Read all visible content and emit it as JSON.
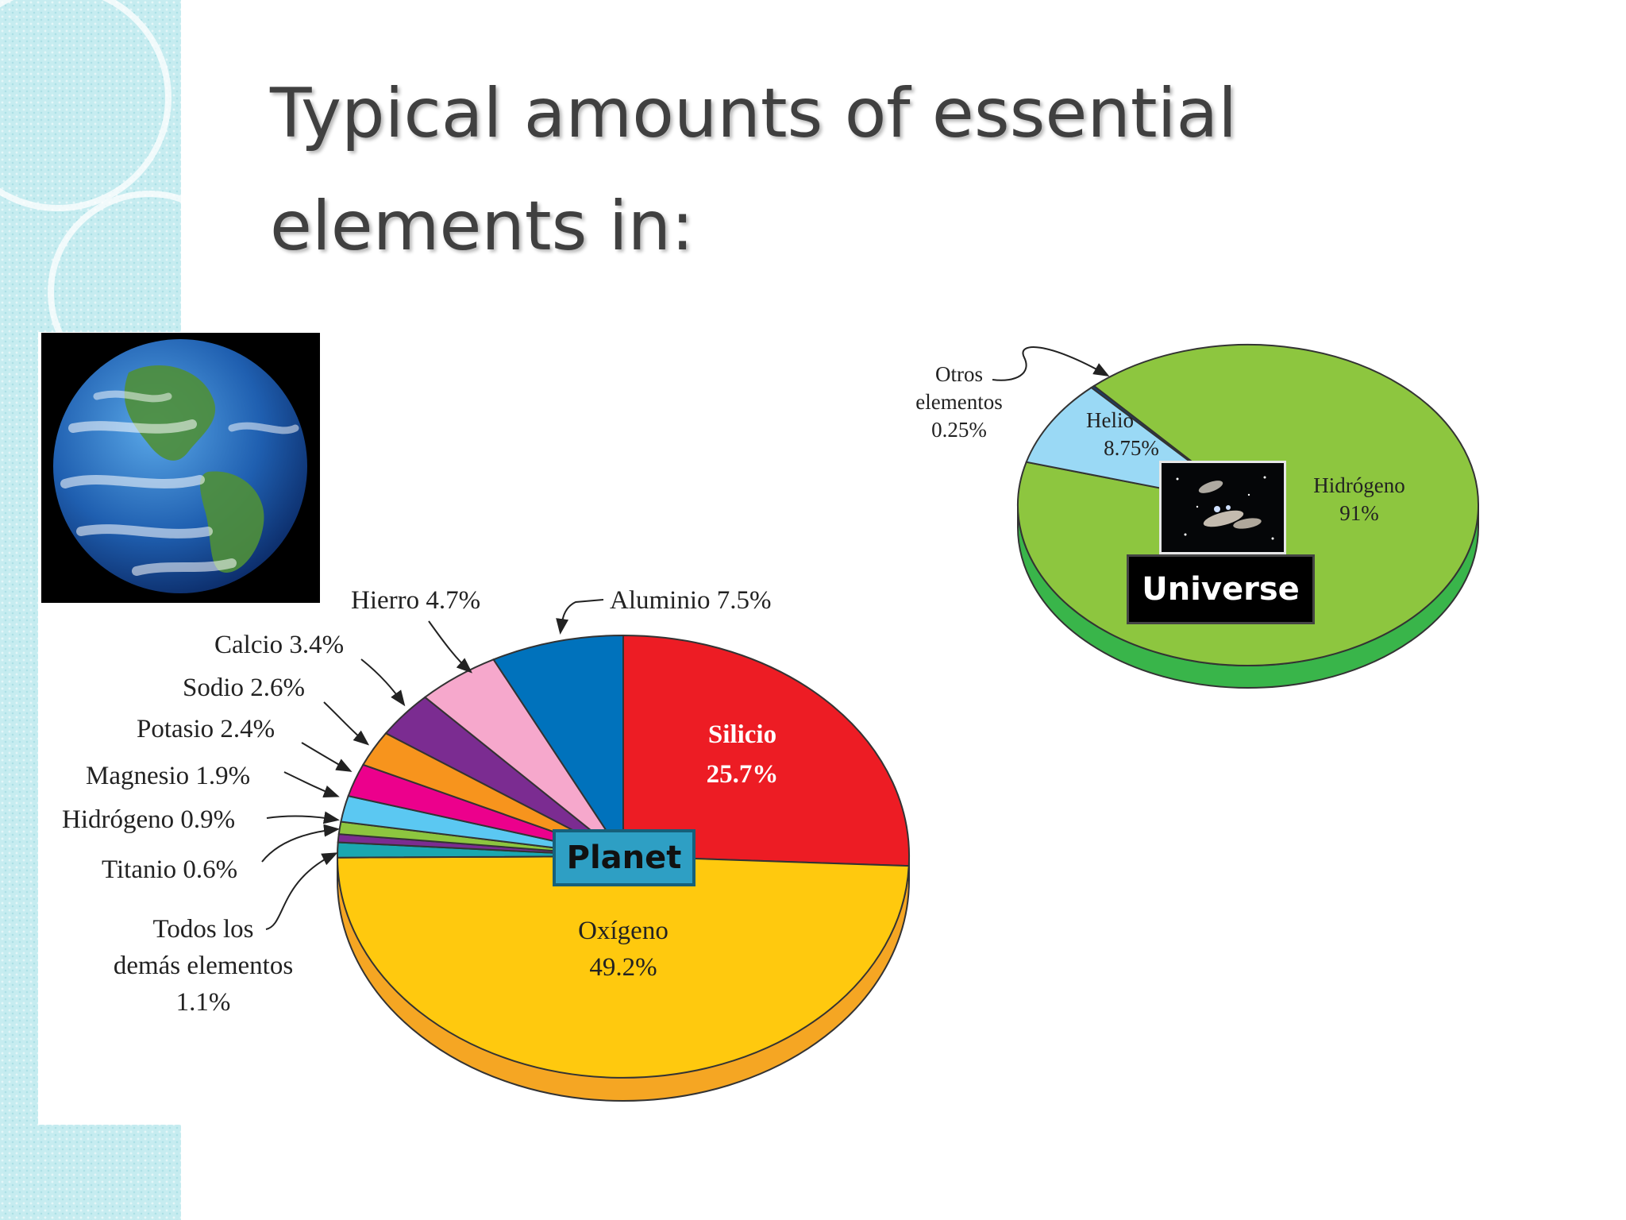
{
  "slide": {
    "title": "Typical amounts of essential elements in:"
  },
  "badges": {
    "planet": "Planet",
    "universe": "Universe"
  },
  "earth_image": {
    "icon": "earth-photo-icon"
  },
  "galaxy_image": {
    "icon": "galaxy-photo-icon"
  },
  "chart_data": [
    {
      "id": "planet",
      "type": "pie",
      "title": "",
      "slices": [
        {
          "label": "Silicio",
          "value": 25.7,
          "display": "Silicio 25.7%",
          "color": "#ed1c24"
        },
        {
          "label": "Oxígeno",
          "value": 49.2,
          "display": "Oxígeno 49.2%",
          "color": "#ffc90e"
        },
        {
          "label": "Todos los demás elementos",
          "value": 1.1,
          "display": "Todos los demás elementos 1.1%",
          "color": "#1aa7b0"
        },
        {
          "label": "Titanio",
          "value": 0.6,
          "display": "Titanio 0.6%",
          "color": "#7b2c91"
        },
        {
          "label": "Hidrógeno",
          "value": 0.9,
          "display": "Hidrógeno 0.9%",
          "color": "#8dc63f"
        },
        {
          "label": "Magnesio",
          "value": 1.9,
          "display": "Magnesio 1.9%",
          "color": "#5bc8f2"
        },
        {
          "label": "Potasio",
          "value": 2.4,
          "display": "Potasio 2.4%",
          "color": "#ec008c"
        },
        {
          "label": "Sodio",
          "value": 2.6,
          "display": "Sodio 2.6%",
          "color": "#f7941d"
        },
        {
          "label": "Calcio",
          "value": 3.4,
          "display": "Calcio 3.4%",
          "color": "#7b2c91"
        },
        {
          "label": "Hierro",
          "value": 4.7,
          "display": "Hierro 4.7%",
          "color": "#f6a8cc"
        },
        {
          "label": "Aluminio",
          "value": 7.5,
          "display": "Aluminio 7.5%",
          "color": "#0072bc"
        }
      ],
      "labels": {
        "silicio": [
          "Silicio",
          "25.7%"
        ],
        "oxigeno": [
          "Oxígeno",
          "49.2%"
        ],
        "aluminio": "Aluminio 7.5%",
        "hierro": "Hierro 4.7%",
        "calcio": "Calcio 3.4%",
        "sodio": "Sodio 2.6%",
        "potasio": "Potasio 2.4%",
        "magnesio": "Magnesio 1.9%",
        "hidrogeno": "Hidrógeno 0.9%",
        "titanio": "Titanio 0.6%",
        "otros": [
          "Todos los",
          "demás elementos",
          "1.1%"
        ]
      },
      "side_color": "#f5a623"
    },
    {
      "id": "universe",
      "type": "pie",
      "title": "",
      "slices": [
        {
          "label": "Hidrógeno",
          "value": 91,
          "display": "Hidrógeno 91%",
          "color": "#8dc63f"
        },
        {
          "label": "Helio",
          "value": 8.75,
          "display": "Helio 8.75%",
          "color": "#9ad9f5"
        },
        {
          "label": "Otros elementos",
          "value": 0.25,
          "display": "Otros elementos 0.25%",
          "color": "#1a3f6b"
        }
      ],
      "labels": {
        "hidrogeno": [
          "Hidrógeno",
          "91%"
        ],
        "helio": [
          "Helio",
          "8.75%"
        ],
        "otros": [
          "Otros",
          "elementos",
          "0.25%"
        ]
      },
      "side_color": "#39b54a"
    }
  ]
}
